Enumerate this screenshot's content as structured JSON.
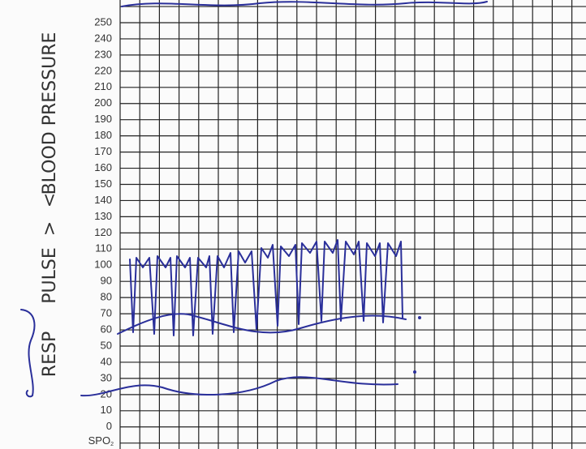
{
  "scale_labels": [
    "250",
    "240",
    "230",
    "220",
    "210",
    "200",
    "190",
    "180",
    "170",
    "160",
    "150",
    "140",
    "130",
    "120",
    "110",
    "100",
    "90",
    "80",
    "70",
    "60",
    "50",
    "40",
    "30",
    "20",
    "10",
    "0"
  ],
  "spo2": {
    "label": "SPO",
    "subscript": "2"
  },
  "side_labels": [
    "RESP",
    "PULSE",
    ">",
    "<",
    "BLOOD PRESSURE"
  ]
}
